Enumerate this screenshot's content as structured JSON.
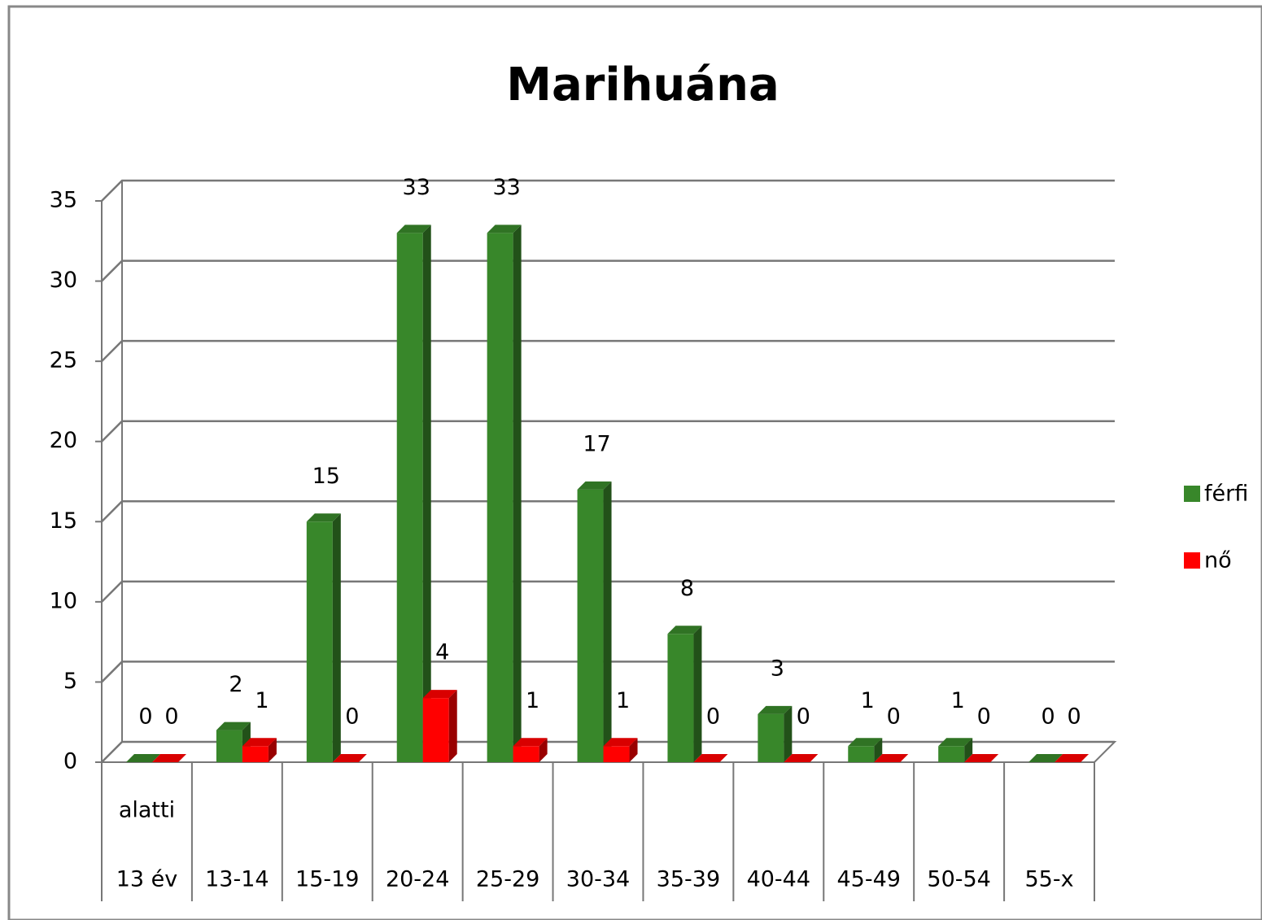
{
  "chart_data": {
    "type": "bar3d",
    "title": "Marihuána",
    "categories": [
      [
        "alatti",
        "13 év"
      ],
      [
        "13-14"
      ],
      [
        "15-19"
      ],
      [
        "20-24"
      ],
      [
        "25-29"
      ],
      [
        "30-34"
      ],
      [
        "35-39"
      ],
      [
        "40-44"
      ],
      [
        "45-49"
      ],
      [
        "50-54"
      ],
      [
        "55-x"
      ]
    ],
    "series": [
      {
        "name": "férfi",
        "color": "#38872a",
        "values": [
          0,
          2,
          15,
          33,
          33,
          17,
          8,
          3,
          1,
          1,
          0
        ]
      },
      {
        "name": "nő",
        "color": "#ff0000",
        "values": [
          0,
          1,
          0,
          4,
          1,
          1,
          0,
          0,
          0,
          0,
          0
        ]
      }
    ],
    "ylim": [
      0,
      35
    ],
    "yticks": [
      0,
      5,
      10,
      15,
      20,
      25,
      30,
      35
    ],
    "grid": true,
    "legend": "right"
  }
}
